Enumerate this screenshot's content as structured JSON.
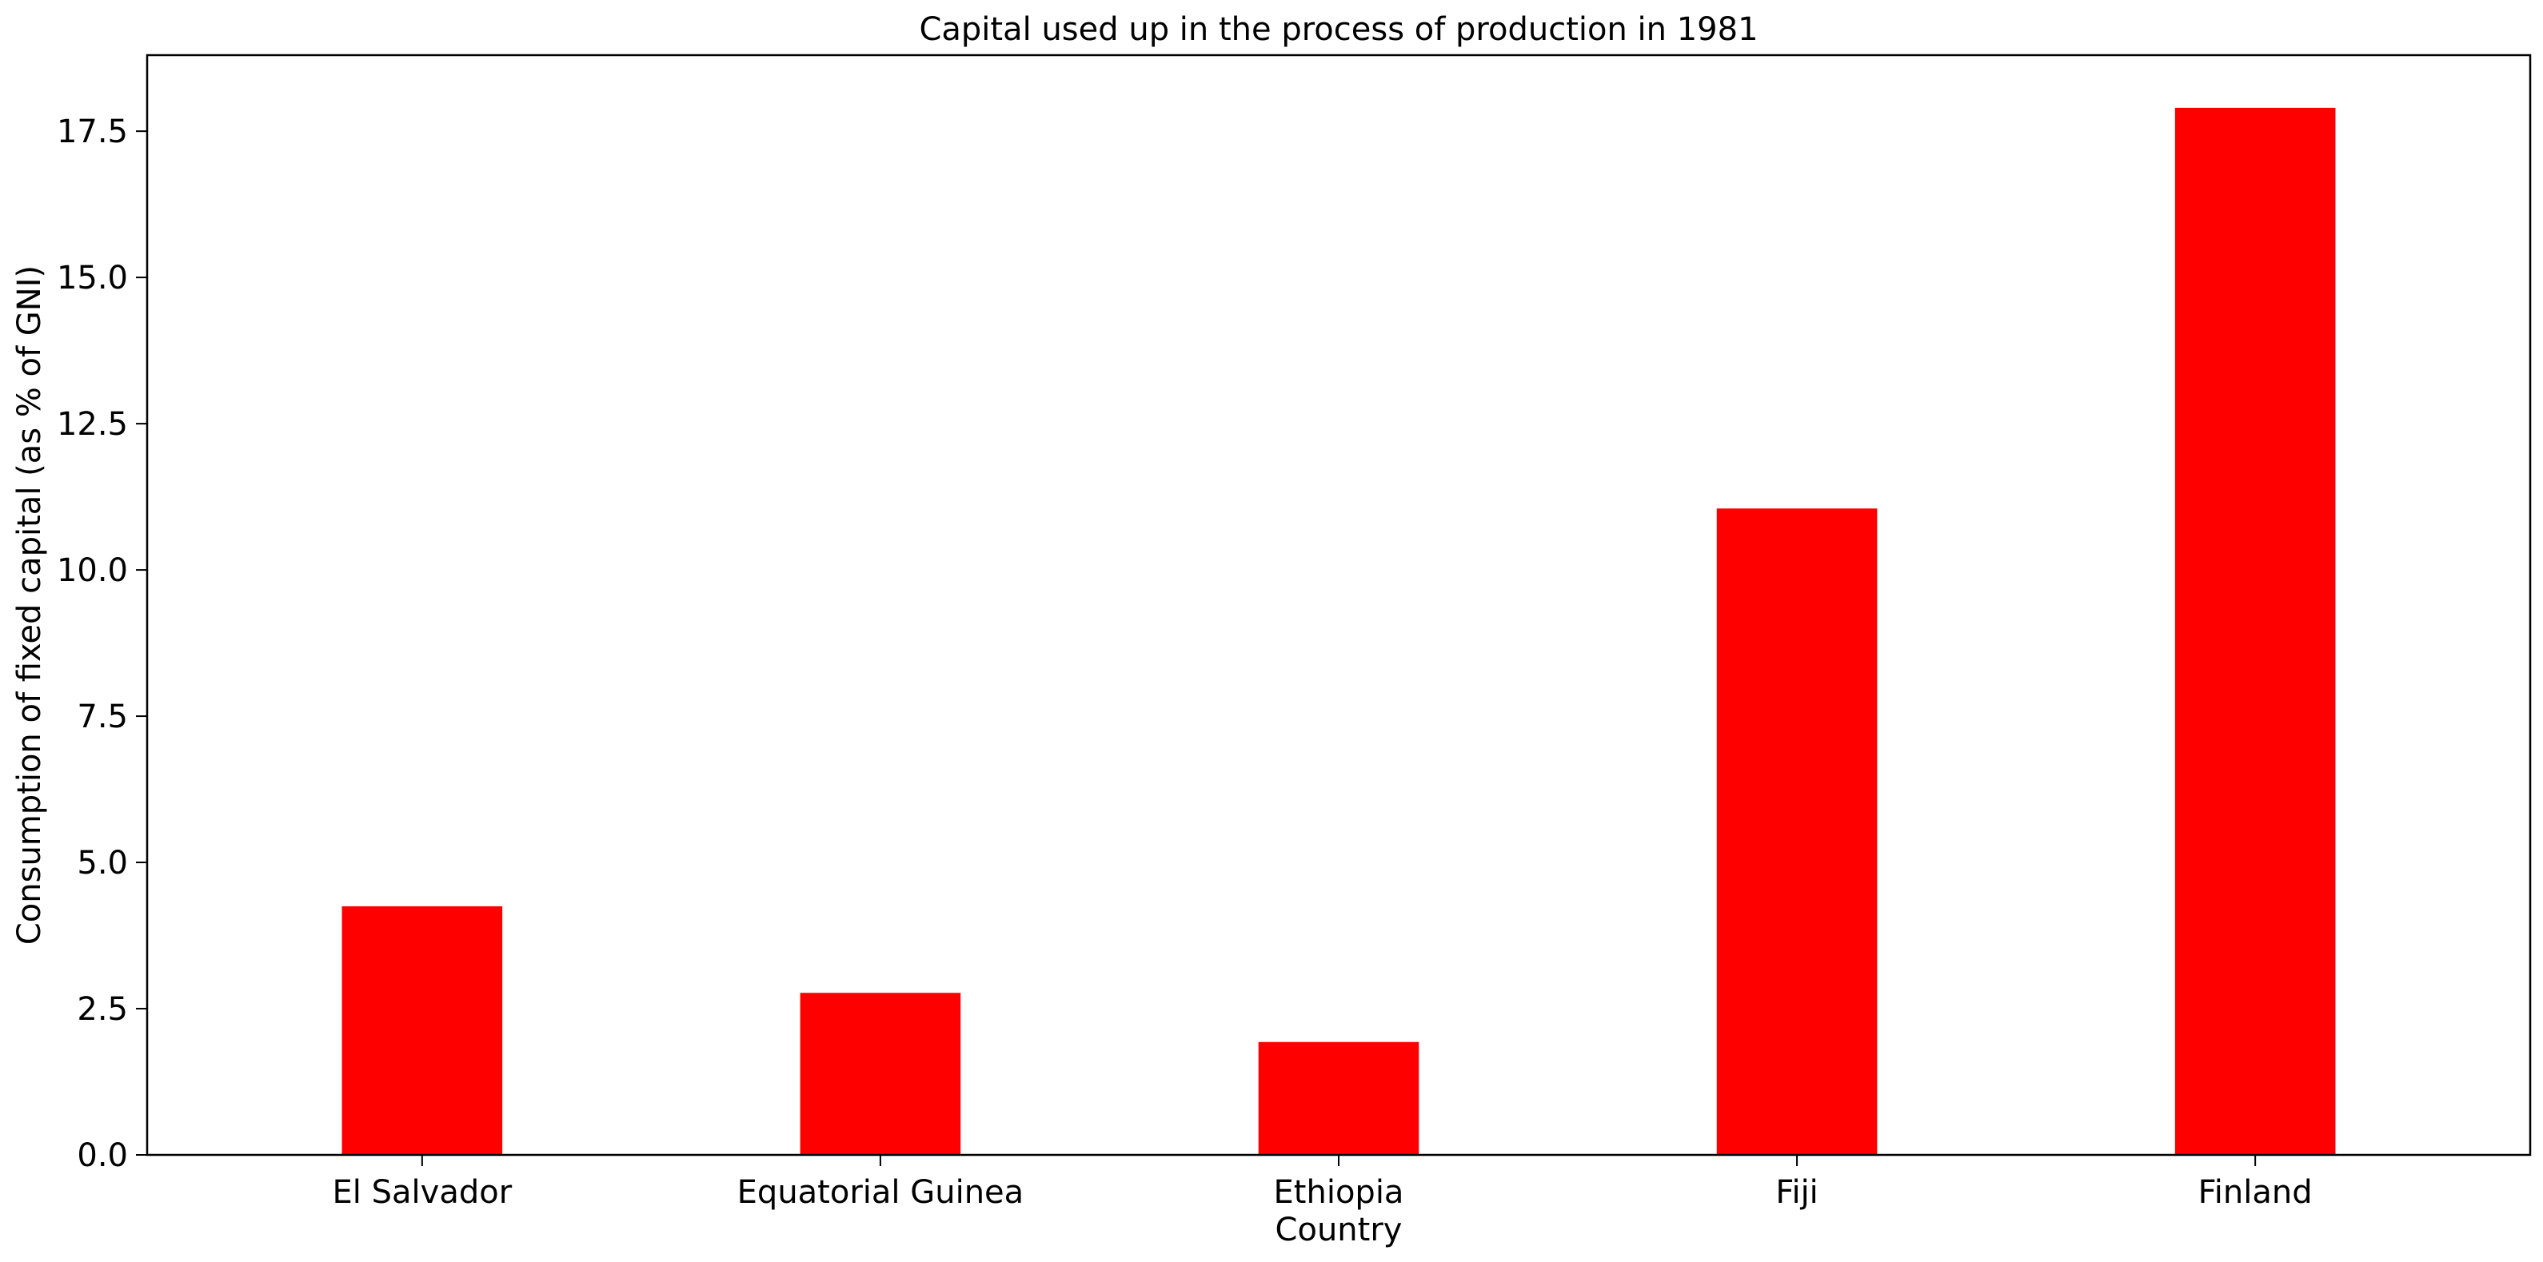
{
  "chart_data": {
    "type": "bar",
    "title": "Capital used up in the process of production in 1981",
    "xlabel": "Country",
    "ylabel": "Consumption of fixed capital (as % of GNI)",
    "categories": [
      "El Salvador",
      "Equatorial Guinea",
      "Ethiopia",
      "Fiji",
      "Finland"
    ],
    "values": [
      4.25,
      2.77,
      1.93,
      11.05,
      17.9
    ],
    "ylim": [
      0,
      18.8
    ],
    "yticks": [
      0.0,
      2.5,
      5.0,
      7.5,
      10.0,
      12.5,
      15.0,
      17.5
    ],
    "ytick_labels": [
      "0.0",
      "2.5",
      "5.0",
      "7.5",
      "10.0",
      "12.5",
      "15.0",
      "17.5"
    ],
    "bar_color": "#ff0000",
    "grid": false,
    "legend": "none"
  }
}
